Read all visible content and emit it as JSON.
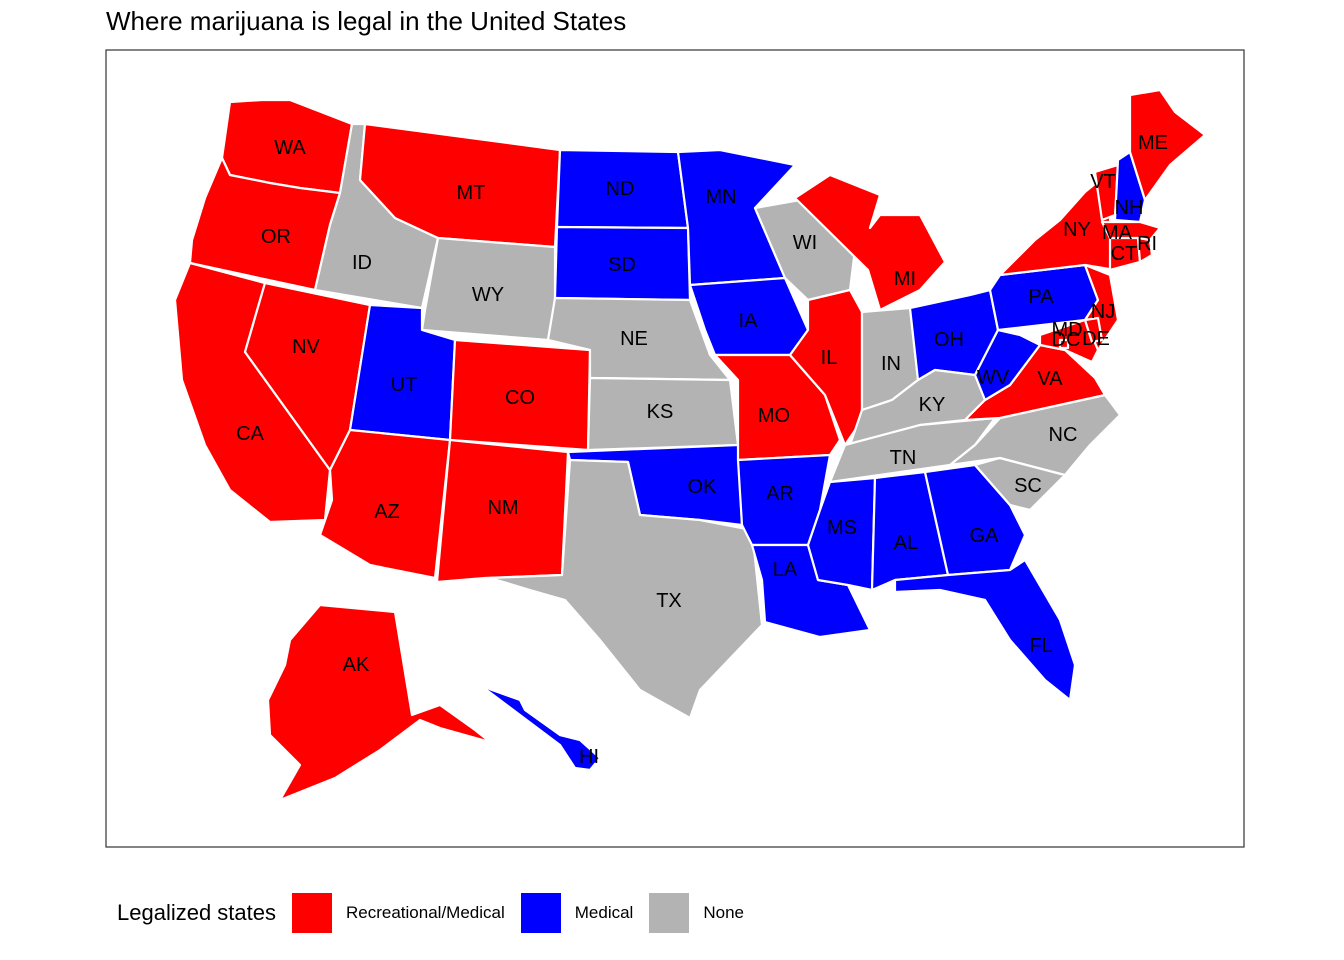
{
  "title": "Where marijuana is legal in the United States",
  "legend": {
    "title": "Legalized states",
    "items": [
      {
        "key": "rec",
        "label": "Recreational/Medical",
        "color": "#ff0000"
      },
      {
        "key": "med",
        "label": "Medical",
        "color": "#0000ff"
      },
      {
        "key": "none",
        "label": "None",
        "color": "#b3b3b3"
      }
    ]
  },
  "states": {
    "WA": "rec",
    "OR": "rec",
    "CA": "rec",
    "NV": "rec",
    "ID": "none",
    "MT": "rec",
    "WY": "none",
    "UT": "med",
    "CO": "rec",
    "AZ": "rec",
    "NM": "rec",
    "ND": "med",
    "SD": "med",
    "NE": "none",
    "KS": "none",
    "OK": "med",
    "TX": "none",
    "MN": "med",
    "IA": "med",
    "MO": "rec",
    "AR": "med",
    "LA": "med",
    "WI": "none",
    "IL": "rec",
    "MI": "rec",
    "IN": "none",
    "OH": "med",
    "KY": "none",
    "TN": "none",
    "MS": "med",
    "AL": "med",
    "GA": "med",
    "FL": "med",
    "SC": "none",
    "NC": "none",
    "VA": "rec",
    "WV": "med",
    "PA": "med",
    "NY": "rec",
    "VT": "rec",
    "NH": "med",
    "ME": "rec",
    "MA": "rec",
    "CT": "rec",
    "RI": "rec",
    "NJ": "rec",
    "DE": "rec",
    "MD": "rec",
    "DC": "rec",
    "AK": "rec",
    "HI": "med"
  }
}
